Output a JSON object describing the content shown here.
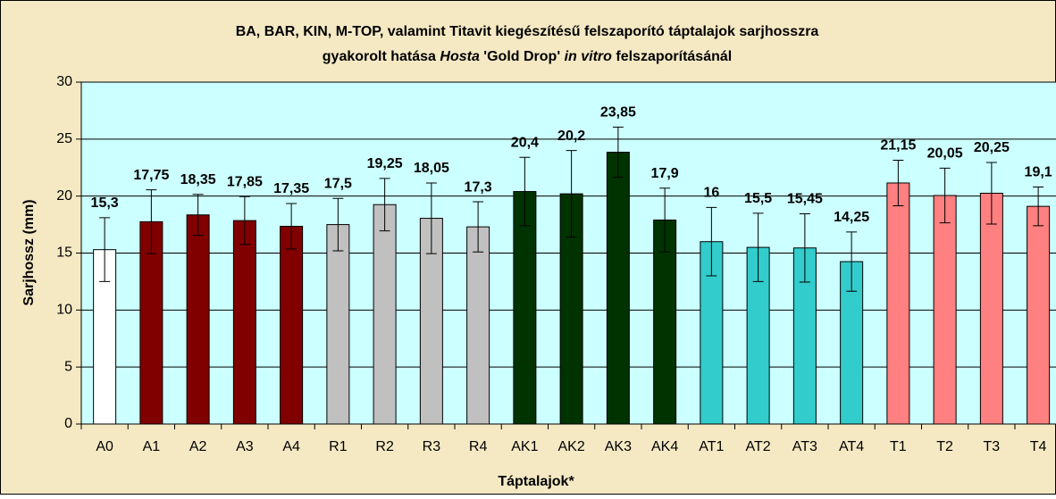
{
  "chart_data": {
    "type": "bar",
    "title": {
      "line1": "BA, BAR, KIN, M-TOP, valamint Titavit kiegészítésű felszaporító táptalajok sarjhosszra",
      "line2": [
        "gyakorolt hatása",
        "Hosta",
        "'Gold Drop'",
        "in vitro",
        "felszaporításánál"
      ]
    },
    "x_label": "Táptalajok*",
    "y_label": "Sarjhossz (mm)",
    "categories": [
      "A0",
      "A1",
      "A2",
      "A3",
      "A4",
      "R1",
      "R2",
      "R3",
      "R4",
      "AK1",
      "AK2",
      "AK3",
      "AK4",
      "AT1",
      "AT2",
      "AT3",
      "AT4",
      "T1",
      "T2",
      "T3",
      "T4"
    ],
    "values": [
      15.3,
      17.75,
      18.35,
      17.85,
      17.35,
      17.5,
      19.25,
      18.05,
      17.3,
      20.4,
      20.2,
      23.85,
      17.9,
      16,
      15.5,
      15.45,
      14.25,
      21.15,
      20.05,
      20.25,
      19.1
    ],
    "value_labels": [
      "15,3",
      "17,75",
      "18,35",
      "17,85",
      "17,35",
      "17,5",
      "19,25",
      "18,05",
      "17,3",
      "20,4",
      "20,2",
      "23,85",
      "17,9",
      "16",
      "15,5",
      "15,45",
      "14,25",
      "21,15",
      "20,05",
      "20,25",
      "19,1"
    ],
    "errors": [
      2.8,
      2.8,
      1.8,
      2.1,
      2,
      2.3,
      2.3,
      3.1,
      2.2,
      3,
      3.8,
      2.2,
      2.8,
      3,
      3,
      3,
      2.6,
      2,
      2.4,
      2.7,
      1.7
    ],
    "colors": [
      "#ffffff",
      "#800000",
      "#800000",
      "#800000",
      "#800000",
      "#c0c0c0",
      "#c0c0c0",
      "#c0c0c0",
      "#c0c0c0",
      "#003300",
      "#003300",
      "#003300",
      "#003300",
      "#33cccc",
      "#33cccc",
      "#33cccc",
      "#33cccc",
      "#ff8080",
      "#ff8080",
      "#ff8080",
      "#ff8080"
    ],
    "ylim": [
      0,
      30
    ],
    "yticks": [
      0,
      5,
      10,
      15,
      20,
      25,
      30
    ],
    "grid": true
  }
}
